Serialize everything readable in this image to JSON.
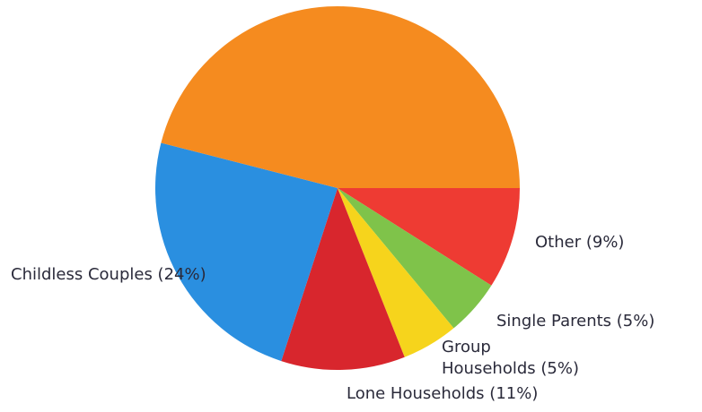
{
  "chart_data": {
    "type": "pie",
    "categories": [
      "Other",
      "Single Parents",
      "Group Households",
      "Lone Households",
      "Childless Couples",
      null
    ],
    "values": [
      9,
      5,
      5,
      11,
      24,
      46
    ],
    "value_labels": [
      "(9%)",
      "(5%)",
      "(5%)",
      "(11%)",
      "(24%)",
      null
    ],
    "colors": [
      "#ee3b33",
      "#7fc34a",
      "#f6d41c",
      "#d8262d",
      "#2a8fe0",
      "#f58b1f"
    ]
  }
}
